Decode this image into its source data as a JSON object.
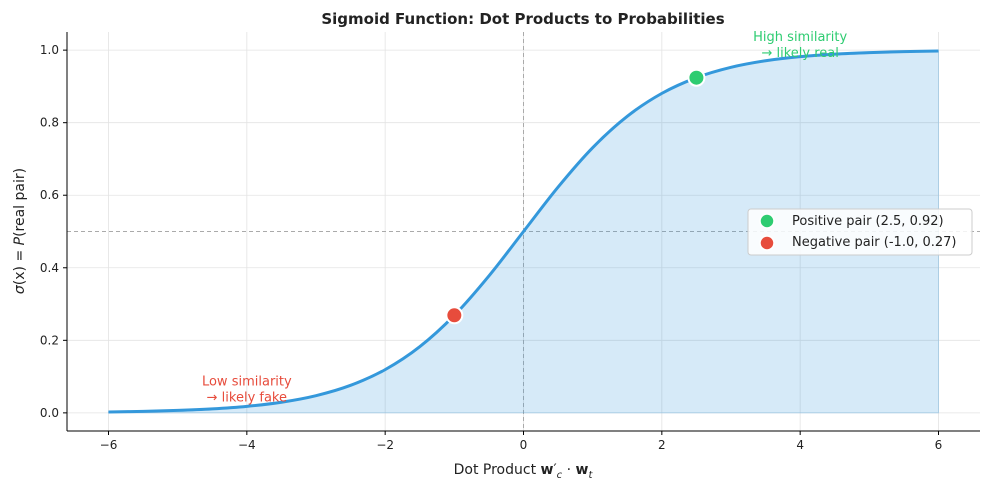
{
  "chart_data": {
    "type": "line",
    "title": "Sigmoid Function: Dot Products to Probabilities",
    "xlabel_parts": {
      "prefix": "Dot Product ",
      "w1": "w",
      "prime": "′",
      "sub1": "c",
      "dot": " · ",
      "w2": "w",
      "sub2": "t"
    },
    "ylabel_parts": {
      "sigma": "σ",
      "rest": "(x) = ",
      "p": "P",
      "tail": "(real pair)"
    },
    "xlim": [
      -6.6,
      6.6
    ],
    "ylim": [
      -0.05,
      1.05
    ],
    "xticks": [
      -6,
      -4,
      -2,
      0,
      2,
      4,
      6
    ],
    "xtick_labels": [
      "−6",
      "−4",
      "−2",
      "0",
      "2",
      "4",
      "6"
    ],
    "yticks": [
      0.0,
      0.2,
      0.4,
      0.6,
      0.8,
      1.0
    ],
    "ytick_labels": [
      "0.0",
      "0.2",
      "0.4",
      "0.6",
      "0.8",
      "1.0"
    ],
    "grid": true,
    "legend_position": "center-right",
    "reference_lines": {
      "horizontal_y": 0.5,
      "vertical_x": 0
    },
    "series": [
      {
        "color": "#3498db",
        "fill_under": true,
        "x": [
          -6,
          -5.5,
          -5,
          -4.5,
          -4,
          -3.5,
          -3,
          -2.5,
          -2,
          -1.5,
          -1,
          -0.5,
          0,
          0.5,
          1,
          1.5,
          2,
          2.5,
          3,
          3.5,
          4,
          4.5,
          5,
          5.5,
          6
        ],
        "y": [
          0.0025,
          0.0041,
          0.0067,
          0.011,
          0.018,
          0.0293,
          0.0474,
          0.0759,
          0.1192,
          0.1824,
          0.2689,
          0.3775,
          0.5,
          0.6225,
          0.7311,
          0.8176,
          0.8808,
          0.9241,
          0.9526,
          0.9707,
          0.982,
          0.989,
          0.9933,
          0.9959,
          0.9975
        ]
      }
    ],
    "points": [
      {
        "name": "Positive pair (2.5, 0.92)",
        "x": 2.5,
        "y": 0.924,
        "color": "#2ecc71"
      },
      {
        "name": "Negative pair (-1.0, 0.27)",
        "x": -1.0,
        "y": 0.269,
        "color": "#e74c3c"
      }
    ],
    "annotations": [
      {
        "line1": "High similarity",
        "line2": "→ likely real",
        "x": 4.0,
        "y": 1.0,
        "color": "#2ecc71"
      },
      {
        "line1": "Low similarity",
        "line2": "→ likely fake",
        "x": -4.0,
        "y": 0.05,
        "color": "#e74c3c"
      }
    ]
  }
}
